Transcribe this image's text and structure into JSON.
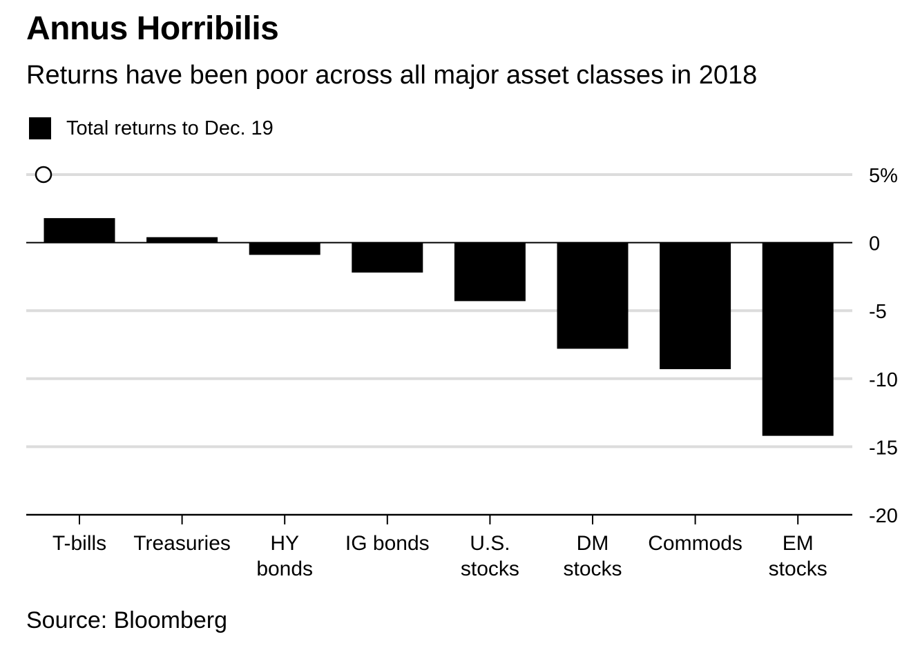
{
  "title": "Annus Horribilis",
  "subtitle": "Returns have been poor across all major asset classes in 2018",
  "legend": {
    "label": "Total returns to Dec. 19"
  },
  "source": "Source: Bloomberg",
  "colors": {
    "bar": "#000000",
    "grid": "#dcdcdc",
    "axis": "#000000",
    "background": "#ffffff"
  },
  "chart_data": {
    "type": "bar",
    "categories": [
      [
        "T-bills"
      ],
      [
        "Treasuries"
      ],
      [
        "HY",
        "bonds"
      ],
      [
        "IG bonds"
      ],
      [
        "U.S.",
        "stocks"
      ],
      [
        "DM",
        "stocks"
      ],
      [
        "Commods"
      ],
      [
        "EM",
        "stocks"
      ]
    ],
    "series": [
      {
        "name": "Total returns to Dec. 19",
        "values": [
          1.8,
          0.4,
          -0.9,
          -2.2,
          -4.3,
          -7.8,
          -9.3,
          -14.2
        ]
      }
    ],
    "ylim": [
      -20,
      5
    ],
    "yticks": [
      5,
      0,
      -5,
      -10,
      -15,
      -20
    ],
    "ytick_labels": [
      "5%",
      "0",
      "-5",
      "-10",
      "-15",
      "-20"
    ],
    "grid": true,
    "legend_position": "top-left"
  }
}
